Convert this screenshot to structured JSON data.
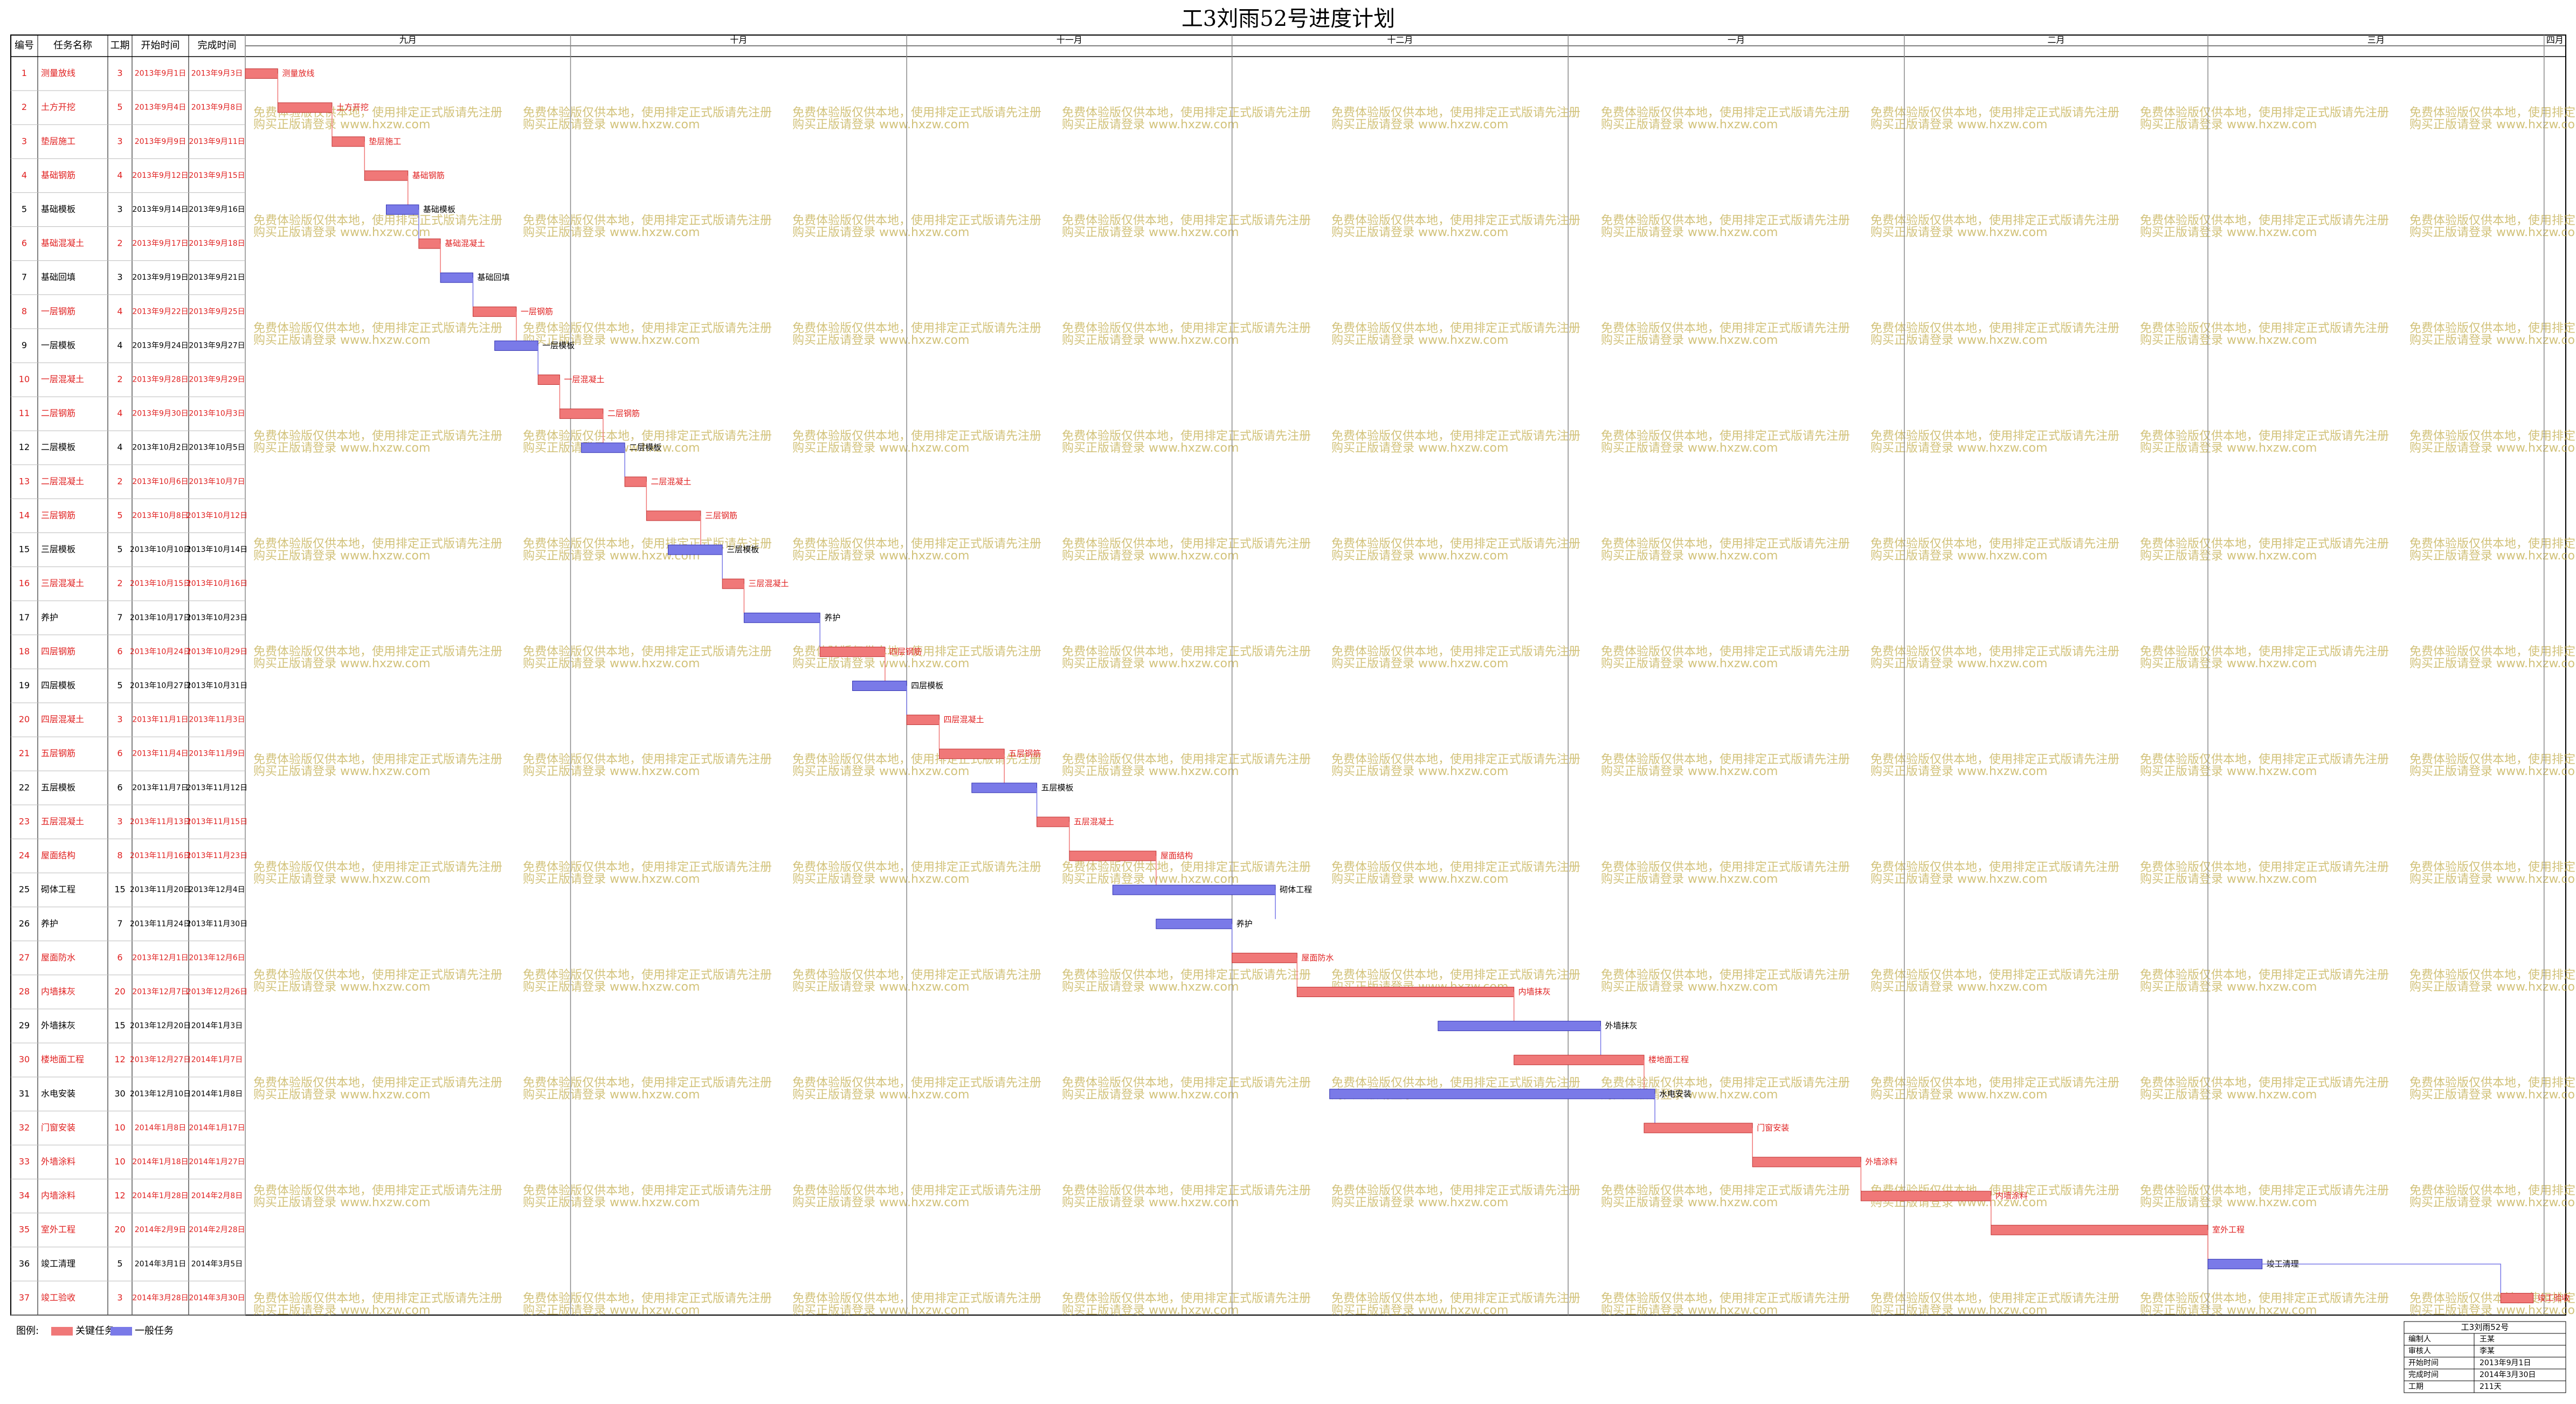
{
  "chart_data": {
    "type": "gantt",
    "title": "工3刘雨52号进度计划",
    "columns": [
      "编号",
      "任务名称",
      "工期",
      "开始时间",
      "完成时间"
    ],
    "xlim": [
      "2013年9月1日",
      "2014年4月3日"
    ],
    "xticks": [
      {
        "value": "2013年9月1日",
        "label": "九月"
      },
      {
        "value": "2013年10月1日",
        "label": "十月"
      },
      {
        "value": "2013年11月1日",
        "label": "十一月"
      },
      {
        "value": "2013年12月1日",
        "label": "十二月"
      },
      {
        "value": "2014年1月1日",
        "label": "一月"
      },
      {
        "value": "2014年2月1日",
        "label": "二月"
      },
      {
        "value": "2014年3月1日",
        "label": "三月"
      },
      {
        "value": "2014年4月1日",
        "label": "四月"
      }
    ],
    "critical_color": "#f07878",
    "normal_color": "#7a7ae8",
    "tasks": [
      {
        "id": 1,
        "name": "测量放线",
        "duration": 3,
        "start": "2013年9月1日",
        "finish": "2013年9月3日",
        "critical": true
      },
      {
        "id": 2,
        "name": "土方开挖",
        "duration": 5,
        "start": "2013年9月4日",
        "finish": "2013年9月8日",
        "critical": true
      },
      {
        "id": 3,
        "name": "垫层施工",
        "duration": 3,
        "start": "2013年9月9日",
        "finish": "2013年9月11日",
        "critical": true
      },
      {
        "id": 4,
        "name": "基础钢筋",
        "duration": 4,
        "start": "2013年9月12日",
        "finish": "2013年9月15日",
        "critical": true
      },
      {
        "id": 5,
        "name": "基础模板",
        "duration": 3,
        "start": "2013年9月14日",
        "finish": "2013年9月16日",
        "critical": false
      },
      {
        "id": 6,
        "name": "基础混凝土",
        "duration": 2,
        "start": "2013年9月17日",
        "finish": "2013年9月18日",
        "critical": true
      },
      {
        "id": 7,
        "name": "基础回填",
        "duration": 3,
        "start": "2013年9月19日",
        "finish": "2013年9月21日",
        "critical": false
      },
      {
        "id": 8,
        "name": "一层钢筋",
        "duration": 4,
        "start": "2013年9月22日",
        "finish": "2013年9月25日",
        "critical": true
      },
      {
        "id": 9,
        "name": "一层模板",
        "duration": 4,
        "start": "2013年9月24日",
        "finish": "2013年9月27日",
        "critical": false
      },
      {
        "id": 10,
        "name": "一层混凝土",
        "duration": 2,
        "start": "2013年9月28日",
        "finish": "2013年9月29日",
        "critical": true
      },
      {
        "id": 11,
        "name": "二层钢筋",
        "duration": 4,
        "start": "2013年9月30日",
        "finish": "2013年10月3日",
        "critical": true
      },
      {
        "id": 12,
        "name": "二层模板",
        "duration": 4,
        "start": "2013年10月2日",
        "finish": "2013年10月5日",
        "critical": false
      },
      {
        "id": 13,
        "name": "二层混凝土",
        "duration": 2,
        "start": "2013年10月6日",
        "finish": "2013年10月7日",
        "critical": true
      },
      {
        "id": 14,
        "name": "三层钢筋",
        "duration": 5,
        "start": "2013年10月8日",
        "finish": "2013年10月12日",
        "critical": true
      },
      {
        "id": 15,
        "name": "三层模板",
        "duration": 5,
        "start": "2013年10月10日",
        "finish": "2013年10月14日",
        "critical": false
      },
      {
        "id": 16,
        "name": "三层混凝土",
        "duration": 2,
        "start": "2013年10月15日",
        "finish": "2013年10月16日",
        "critical": true
      },
      {
        "id": 17,
        "name": "养护",
        "duration": 7,
        "start": "2013年10月17日",
        "finish": "2013年10月23日",
        "critical": false
      },
      {
        "id": 18,
        "name": "四层钢筋",
        "duration": 6,
        "start": "2013年10月24日",
        "finish": "2013年10月29日",
        "critical": true
      },
      {
        "id": 19,
        "name": "四层模板",
        "duration": 5,
        "start": "2013年10月27日",
        "finish": "2013年10月31日",
        "critical": false
      },
      {
        "id": 20,
        "name": "四层混凝土",
        "duration": 3,
        "start": "2013年11月1日",
        "finish": "2013年11月3日",
        "critical": true
      },
      {
        "id": 21,
        "name": "五层钢筋",
        "duration": 6,
        "start": "2013年11月4日",
        "finish": "2013年11月9日",
        "critical": true
      },
      {
        "id": 22,
        "name": "五层模板",
        "duration": 6,
        "start": "2013年11月7日",
        "finish": "2013年11月12日",
        "critical": false
      },
      {
        "id": 23,
        "name": "五层混凝土",
        "duration": 3,
        "start": "2013年11月13日",
        "finish": "2013年11月15日",
        "critical": true
      },
      {
        "id": 24,
        "name": "屋面结构",
        "duration": 8,
        "start": "2013年11月16日",
        "finish": "2013年11月23日",
        "critical": true
      },
      {
        "id": 25,
        "name": "砌体工程",
        "duration": 15,
        "start": "2013年11月20日",
        "finish": "2013年12月4日",
        "critical": false
      },
      {
        "id": 26,
        "name": "养护",
        "duration": 7,
        "start": "2013年11月24日",
        "finish": "2013年11月30日",
        "critical": false
      },
      {
        "id": 27,
        "name": "屋面防水",
        "duration": 6,
        "start": "2013年12月1日",
        "finish": "2013年12月6日",
        "critical": true
      },
      {
        "id": 28,
        "name": "内墙抹灰",
        "duration": 20,
        "start": "2013年12月7日",
        "finish": "2013年12月26日",
        "critical": true
      },
      {
        "id": 29,
        "name": "外墙抹灰",
        "duration": 15,
        "start": "2013年12月20日",
        "finish": "2014年1月3日",
        "critical": false
      },
      {
        "id": 30,
        "name": "楼地面工程",
        "duration": 12,
        "start": "2013年12月27日",
        "finish": "2014年1月7日",
        "critical": true
      },
      {
        "id": 31,
        "name": "水电安装",
        "duration": 30,
        "start": "2013年12月10日",
        "finish": "2014年1月8日",
        "critical": false
      },
      {
        "id": 32,
        "name": "门窗安装",
        "duration": 10,
        "start": "2014年1月8日",
        "finish": "2014年1月17日",
        "critical": true
      },
      {
        "id": 33,
        "name": "外墙涂料",
        "duration": 10,
        "start": "2014年1月18日",
        "finish": "2014年1月27日",
        "critical": true
      },
      {
        "id": 34,
        "name": "内墙涂料",
        "duration": 12,
        "start": "2014年1月28日",
        "finish": "2014年2月8日",
        "critical": true
      },
      {
        "id": 35,
        "name": "室外工程",
        "duration": 20,
        "start": "2014年2月9日",
        "finish": "2014年2月28日",
        "critical": true
      },
      {
        "id": 36,
        "name": "竣工清理",
        "duration": 5,
        "start": "2014年3月1日",
        "finish": "2014年3月5日",
        "critical": false
      },
      {
        "id": 37,
        "name": "竣工验收",
        "duration": 3,
        "start": "2014年3月28日",
        "finish": "2014年3月30日",
        "critical": true
      }
    ],
    "legend": {
      "title": "图例:",
      "critical": "关键任务",
      "normal": "一般任务"
    },
    "watermark": [
      "免费体验版仅供本地，使用排定正式版请先注册",
      "购买正版请登录 www.hxzw.com"
    ],
    "info_box": {
      "title": "工3刘雨52号",
      "rows": [
        [
          "编制人",
          "王某"
        ],
        [
          "审核人",
          "李某"
        ],
        [
          "开始时间",
          "2013年9月1日"
        ],
        [
          "完成时间",
          "2014年3月30日"
        ],
        [
          "工期",
          "211天"
        ]
      ]
    }
  }
}
